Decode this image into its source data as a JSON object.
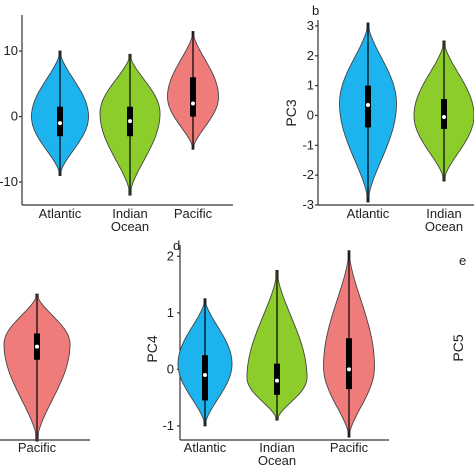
{
  "colors": {
    "Atlantic": "#1cb3ef",
    "Indian Ocean": "#8ccd2c",
    "Pacific": "#f07b7b"
  },
  "chart_data": [
    {
      "id": "panel-top-left",
      "type": "violin",
      "letter": "",
      "ylabel": "",
      "ylim": [
        -13.5,
        15.5
      ],
      "yticks": [
        -10,
        0,
        10
      ],
      "categories": [
        "Atlantic",
        "Indian\nOcean",
        "Pacific"
      ],
      "series": [
        {
          "group": "Atlantic",
          "min": -9,
          "max": 10,
          "q1": -3,
          "median": -1,
          "q3": 1.5,
          "peak": 0,
          "width": 0.95
        },
        {
          "group": "Indian Ocean",
          "min": -12,
          "max": 9.5,
          "q1": -3,
          "median": -0.7,
          "q3": 1.5,
          "peak": 0.5,
          "width": 1.0
        },
        {
          "group": "Pacific",
          "min": -5,
          "max": 13,
          "q1": 0,
          "median": 2,
          "q3": 6,
          "peak": 3,
          "width": 0.85
        }
      ]
    },
    {
      "id": "panel-b",
      "type": "violin",
      "letter": "b",
      "ylabel": "PC3",
      "ylim": [
        -3.0,
        3.2
      ],
      "yticks": [
        -3,
        -2,
        -1,
        0,
        1,
        2,
        3
      ],
      "categories": [
        "Atlantic",
        "Indian\nOcean"
      ],
      "series": [
        {
          "group": "Atlantic",
          "min": -2.9,
          "max": 3.1,
          "q1": -0.4,
          "median": 0.35,
          "q3": 1.0,
          "peak": 0.4,
          "width": 0.95
        },
        {
          "group": "Indian Ocean",
          "min": -2.2,
          "max": 2.5,
          "q1": -0.45,
          "median": -0.05,
          "q3": 0.55,
          "peak": 0,
          "width": 1.0
        }
      ]
    },
    {
      "id": "panel-bottom-left",
      "type": "violin",
      "letter": "",
      "ylabel": "",
      "ylim": [
        -2,
        2
      ],
      "yticks": [],
      "categories": [
        "Pacific"
      ],
      "series": [
        {
          "group": "Pacific",
          "min": -1.45,
          "max": 1.35,
          "q1": 0.1,
          "median": 0.35,
          "q3": 0.6,
          "peak": 0.4,
          "width": 1.0
        }
      ]
    },
    {
      "id": "panel-d",
      "type": "violin",
      "letter": "d",
      "ylabel": "PC4",
      "ylim": [
        -1.25,
        2.2
      ],
      "yticks": [
        -1,
        0,
        1,
        2
      ],
      "categories": [
        "Atlantic",
        "Indian\nOcean",
        "Pacific"
      ],
      "series": [
        {
          "group": "Atlantic",
          "min": -1.0,
          "max": 1.25,
          "q1": -0.55,
          "median": -0.1,
          "q3": 0.25,
          "peak": 0.1,
          "width": 0.9
        },
        {
          "group": "Indian Ocean",
          "min": -0.9,
          "max": 1.75,
          "q1": -0.45,
          "median": -0.2,
          "q3": 0.1,
          "peak": -0.15,
          "width": 1.0
        },
        {
          "group": "Pacific",
          "min": -1.2,
          "max": 2.1,
          "q1": -0.35,
          "median": 0,
          "q3": 0.55,
          "peak": 0.05,
          "width": 0.85
        }
      ]
    },
    {
      "id": "panel-e",
      "type": "violin",
      "letter": "e",
      "ylabel": "PC5",
      "categories": [],
      "series": []
    }
  ]
}
